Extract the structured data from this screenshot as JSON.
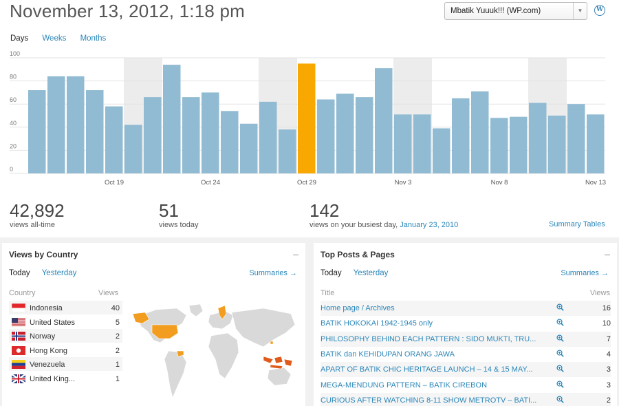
{
  "header": {
    "date": "November 13, 2012, 1:18 pm",
    "site_select": "Mbatik Yuuuk!!! (WP.com)",
    "wp_icon": "wordpress-icon"
  },
  "period_tabs": [
    "Days",
    "Weeks",
    "Months"
  ],
  "chart_data": {
    "type": "bar",
    "ylim": [
      0,
      100
    ],
    "yticks": [
      0,
      20,
      40,
      60,
      80,
      100
    ],
    "x_labels": [
      {
        "index": 4,
        "label": "Oct 19"
      },
      {
        "index": 9,
        "label": "Oct 24"
      },
      {
        "index": 14,
        "label": "Oct 29"
      },
      {
        "index": 19,
        "label": "Nov 3"
      },
      {
        "index": 24,
        "label": "Nov 8"
      },
      {
        "index": 29,
        "label": "Nov 13"
      }
    ],
    "values": [
      72,
      84,
      84,
      72,
      58,
      42,
      66,
      94,
      66,
      70,
      54,
      43,
      62,
      38,
      95,
      64,
      69,
      66,
      91,
      51,
      51,
      39,
      65,
      71,
      48,
      49,
      61,
      50,
      60,
      51
    ],
    "highlight_index": 14,
    "weekend_bands": [
      [
        5,
        6
      ],
      [
        12,
        13
      ],
      [
        19,
        20
      ],
      [
        26,
        27
      ]
    ],
    "colors": {
      "bar": "#91bbd2",
      "highlight": "#f8a800",
      "band": "#ececec",
      "grid": "#e2e2e2"
    }
  },
  "totals": {
    "all_time_value": "42,892",
    "all_time_label": "views all-time",
    "today_value": "51",
    "today_label": "views today",
    "busiest_value": "142",
    "busiest_label": "views on your busiest day,",
    "busiest_date": "January 23, 2010",
    "summary_tables": "Summary Tables"
  },
  "country_panel": {
    "title": "Views by Country",
    "minus": "–",
    "tabs": [
      "Today",
      "Yesterday"
    ],
    "summaries": "Summaries →",
    "col_country": "Country",
    "col_views": "Views",
    "rows": [
      {
        "name": "Indonesia",
        "views": "40",
        "flag": "id"
      },
      {
        "name": "United States",
        "views": "5",
        "flag": "us"
      },
      {
        "name": "Norway",
        "views": "2",
        "flag": "no"
      },
      {
        "name": "Hong Kong",
        "views": "2",
        "flag": "hk"
      },
      {
        "name": "Venezuela",
        "views": "1",
        "flag": "ve"
      },
      {
        "name": "United King...",
        "views": "1",
        "flag": "gb"
      }
    ]
  },
  "posts_panel": {
    "title": "Top Posts & Pages",
    "minus": "–",
    "tabs": [
      "Today",
      "Yesterday"
    ],
    "summaries": "Summaries →",
    "col_title": "Title",
    "col_views": "Views",
    "rows": [
      {
        "title": "Home page / Archives",
        "views": "16"
      },
      {
        "title": "BATIK HOKOKAI 1942-1945 only",
        "views": "10"
      },
      {
        "title": "PHILOSOPHY BEHIND EACH PATTERN : SIDO MUKTI, TRU...",
        "views": "7"
      },
      {
        "title": "BATIK dan KEHIDUPAN ORANG JAWA",
        "views": "4"
      },
      {
        "title": "APART OF BATIK CHIC HERITAGE LAUNCH – 14 & 15 MAY...",
        "views": "3"
      },
      {
        "title": "MEGA-MENDUNG PATTERN – BATIK CIREBON",
        "views": "3"
      },
      {
        "title": "CURIOUS AFTER WATCHING 8-11 SHOW METROTV – BATI...",
        "views": "2"
      }
    ]
  }
}
